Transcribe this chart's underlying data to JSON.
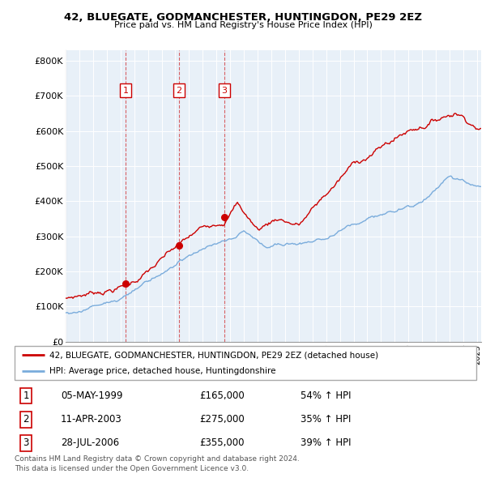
{
  "title1": "42, BLUEGATE, GODMANCHESTER, HUNTINGDON, PE29 2EZ",
  "title2": "Price paid vs. HM Land Registry's House Price Index (HPI)",
  "ylim": [
    0,
    830000
  ],
  "yticks": [
    0,
    100000,
    200000,
    300000,
    400000,
    500000,
    600000,
    700000,
    800000
  ],
  "ytick_labels": [
    "£0",
    "£100K",
    "£200K",
    "£300K",
    "£400K",
    "£500K",
    "£600K",
    "£700K",
    "£800K"
  ],
  "red_color": "#cc0000",
  "blue_color": "#7aacdc",
  "chart_bg": "#e8f0f8",
  "grid_color": "#ffffff",
  "legend_label_red": "42, BLUEGATE, GODMANCHESTER, HUNTINGDON, PE29 2EZ (detached house)",
  "legend_label_blue": "HPI: Average price, detached house, Huntingdonshire",
  "transactions": [
    {
      "num": 1,
      "date": "05-MAY-1999",
      "price": 165000,
      "hpi_pct": "54%",
      "x_year": 1999.37
    },
    {
      "num": 2,
      "date": "11-APR-2003",
      "price": 275000,
      "hpi_pct": "35%",
      "x_year": 2003.28
    },
    {
      "num": 3,
      "date": "28-JUL-2006",
      "price": 355000,
      "hpi_pct": "39%",
      "x_year": 2006.57
    }
  ],
  "footer1": "Contains HM Land Registry data © Crown copyright and database right 2024.",
  "footer2": "This data is licensed under the Open Government Licence v3.0.",
  "xlim_start": 1995.0,
  "xlim_end": 2025.3
}
